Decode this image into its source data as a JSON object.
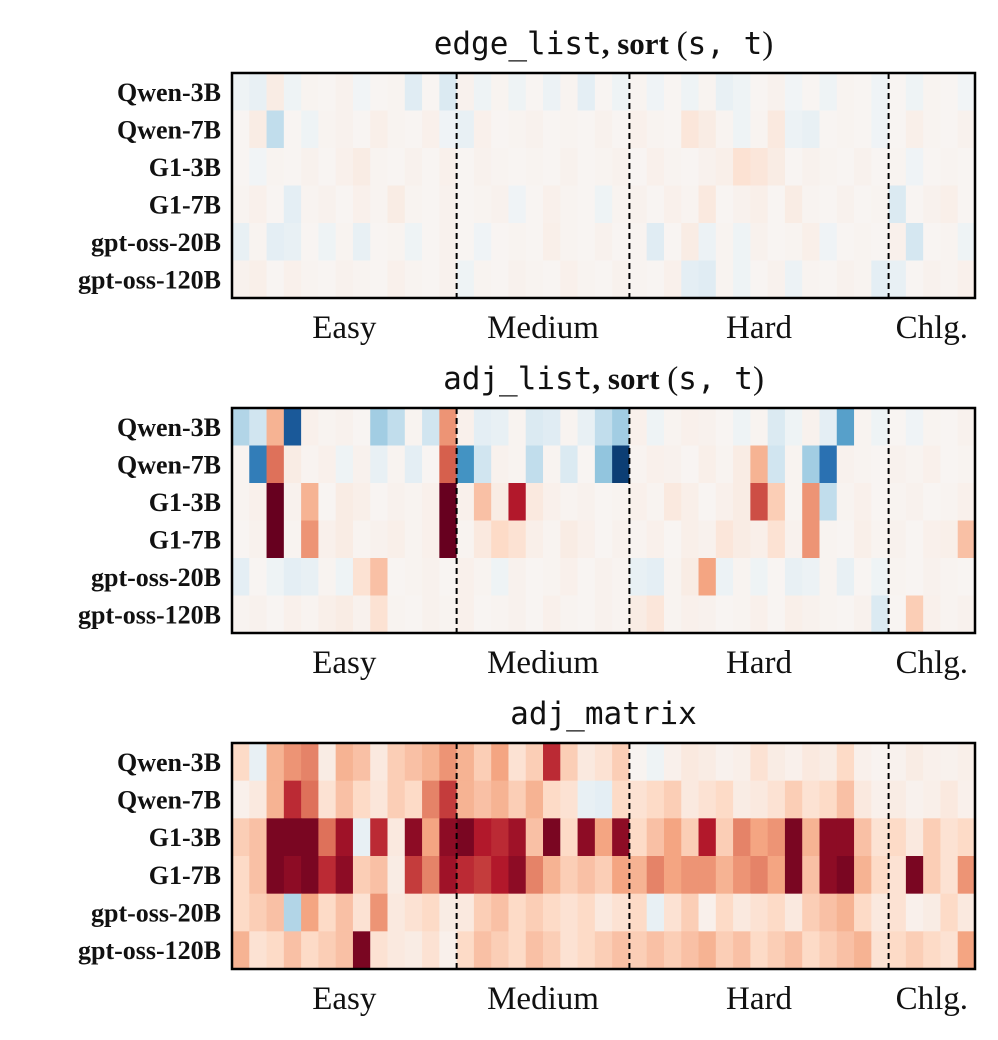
{
  "colors": {
    "negative_strong": "#053061",
    "negative": "#2166ac",
    "negative_mid": "#4393c3",
    "negative_light": "#92c5de",
    "negative_pale": "#d1e5f0",
    "neutral": "#f7f7f7",
    "positive_pale": "#fddbc7",
    "positive_light": "#f4a582",
    "positive_mid": "#d6604d",
    "positive": "#b2182b",
    "positive_strong": "#67001f"
  },
  "chart_data": [
    {
      "type": "heatmap",
      "title_code": "edge_list",
      "title_word": ", sort",
      "title_args": "(s, t)",
      "rows": [
        "Qwen-3B",
        "Qwen-7B",
        "G1-3B",
        "G1-7B",
        "gpt-oss-20B",
        "gpt-oss-120B"
      ],
      "groups": [
        {
          "label": "Easy",
          "columns": 13
        },
        {
          "label": "Medium",
          "columns": 10
        },
        {
          "label": "Hard",
          "columns": 15
        },
        {
          "label": "Chlg.",
          "columns": 5
        }
      ],
      "value_range": [
        -1,
        1
      ],
      "values": [
        [
          -0.05,
          -0.08,
          0.08,
          -0.05,
          0.03,
          0.02,
          0.04,
          -0.03,
          0.02,
          0.03,
          -0.12,
          0.02,
          -0.15,
          0.04,
          -0.05,
          0.03,
          -0.05,
          0.02,
          -0.06,
          0.03,
          -0.1,
          0.02,
          -0.05,
          0.03,
          -0.04,
          0.02,
          -0.05,
          0.03,
          -0.08,
          -0.05,
          0.02,
          0.04,
          -0.03,
          0.02,
          -0.05,
          0.03,
          0.02,
          -0.04,
          0.02,
          -0.05,
          0.03,
          0.02,
          -0.03
        ],
        [
          0.02,
          0.08,
          -0.25,
          0.02,
          -0.05,
          0.03,
          0.04,
          0.02,
          0.06,
          0.03,
          0.02,
          0.05,
          -0.04,
          -0.08,
          0.05,
          0.02,
          0.03,
          0.04,
          0.02,
          0.03,
          0.02,
          0.04,
          0.02,
          0.05,
          0.03,
          0.02,
          0.12,
          0.08,
          0.03,
          -0.05,
          0.03,
          0.1,
          -0.06,
          -0.08,
          0.02,
          0.03,
          0.02,
          -0.04,
          0.02,
          0.06,
          0.03,
          0.02,
          0.04
        ],
        [
          0.02,
          -0.03,
          0.03,
          0.02,
          0.04,
          0.02,
          0.05,
          0.08,
          0.03,
          0.02,
          0.04,
          0.02,
          0.05,
          0.02,
          0.04,
          0.03,
          0.02,
          0.03,
          0.02,
          0.04,
          0.02,
          0.03,
          0.04,
          0.02,
          0.05,
          0.03,
          0.02,
          0.04,
          0.06,
          0.15,
          0.12,
          0.08,
          0.02,
          0.04,
          0.03,
          0.02,
          0.04,
          0.02,
          0.03,
          -0.04,
          0.02,
          0.03,
          0.02
        ],
        [
          0.03,
          0.05,
          0.02,
          -0.1,
          0.03,
          0.04,
          0.02,
          0.05,
          0.03,
          0.08,
          0.03,
          0.02,
          0.04,
          0.02,
          0.03,
          0.04,
          -0.04,
          0.02,
          0.05,
          0.03,
          0.02,
          -0.05,
          0.03,
          0.04,
          0.02,
          0.05,
          0.03,
          0.1,
          0.02,
          0.04,
          0.06,
          0.02,
          0.08,
          0.03,
          0.02,
          0.04,
          0.02,
          0.03,
          -0.15,
          0.02,
          0.04,
          0.06,
          0.02
        ],
        [
          -0.08,
          0.03,
          -0.1,
          -0.08,
          0.02,
          -0.05,
          0.03,
          -0.08,
          0.02,
          0.03,
          -0.05,
          0.02,
          0.04,
          0.02,
          -0.04,
          0.02,
          0.03,
          0.02,
          0.06,
          0.03,
          0.02,
          0.04,
          0.02,
          0.03,
          -0.12,
          0.02,
          0.08,
          -0.06,
          0.03,
          -0.05,
          0.04,
          0.02,
          0.03,
          0.06,
          -0.04,
          0.02,
          0.03,
          0.02,
          0.05,
          -0.18,
          0.02,
          0.03,
          -0.05
        ],
        [
          0.04,
          0.06,
          0.02,
          0.05,
          0.03,
          0.02,
          0.04,
          0.03,
          0.02,
          0.05,
          0.03,
          0.02,
          0.04,
          -0.05,
          0.03,
          0.02,
          0.04,
          0.03,
          0.02,
          0.05,
          0.03,
          0.02,
          0.04,
          0.03,
          0.02,
          0.05,
          -0.1,
          -0.12,
          0.03,
          -0.05,
          0.02,
          0.04,
          -0.06,
          0.03,
          0.02,
          0.04,
          0.03,
          -0.1,
          -0.08,
          0.02,
          0.04,
          0.03,
          0.05
        ]
      ]
    },
    {
      "type": "heatmap",
      "title_code": "adj_list",
      "title_word": ", sort",
      "title_args": "(s, t)",
      "rows": [
        "Qwen-3B",
        "Qwen-7B",
        "G1-3B",
        "G1-7B",
        "gpt-oss-20B",
        "gpt-oss-120B"
      ],
      "groups": [
        {
          "label": "Easy",
          "columns": 13
        },
        {
          "label": "Medium",
          "columns": 10
        },
        {
          "label": "Hard",
          "columns": 15
        },
        {
          "label": "Chlg.",
          "columns": 5
        }
      ],
      "value_range": [
        -1,
        1
      ],
      "values": [
        [
          -0.3,
          -0.2,
          0.35,
          -0.85,
          0.05,
          0.03,
          0.04,
          0.02,
          -0.35,
          -0.25,
          0.03,
          -0.2,
          0.45,
          0.05,
          -0.1,
          -0.08,
          0.03,
          -0.15,
          -0.12,
          0.03,
          -0.08,
          -0.25,
          -0.35,
          0.05,
          -0.05,
          0.03,
          0.05,
          0.04,
          0.02,
          -0.05,
          0.03,
          -0.15,
          -0.05,
          0.04,
          -0.1,
          -0.55,
          0.03,
          -0.05,
          0.02,
          -0.04,
          0.03,
          0.02,
          0.04
        ],
        [
          0.03,
          -0.7,
          0.55,
          0.08,
          0.03,
          0.05,
          -0.05,
          0.04,
          -0.08,
          0.03,
          -0.1,
          0.02,
          0.6,
          -0.6,
          -0.2,
          0.04,
          0.03,
          -0.25,
          0.03,
          -0.15,
          0.02,
          -0.4,
          -0.95,
          0.03,
          0.05,
          0.04,
          0.02,
          0.06,
          0.03,
          0.08,
          0.35,
          -0.2,
          0.03,
          -0.35,
          -0.75,
          0.04,
          0.03,
          0.02,
          0.04,
          0.03,
          0.05,
          0.02,
          0.03
        ],
        [
          0.03,
          0.05,
          1.0,
          0.04,
          0.35,
          0.02,
          0.08,
          0.06,
          0.02,
          0.04,
          0.03,
          0.05,
          1.0,
          0.05,
          0.3,
          0.08,
          0.8,
          0.1,
          0.05,
          0.03,
          0.04,
          0.02,
          0.03,
          0.05,
          0.03,
          0.1,
          0.06,
          0.02,
          0.05,
          0.08,
          0.65,
          0.25,
          0.03,
          0.45,
          -0.25,
          0.03,
          0.05,
          0.02,
          0.03,
          0.04,
          0.02,
          0.03,
          0.05
        ],
        [
          0.02,
          0.04,
          1.0,
          0.03,
          0.45,
          0.05,
          0.08,
          0.03,
          0.04,
          0.06,
          0.03,
          0.05,
          1.0,
          0.03,
          0.1,
          0.2,
          0.15,
          0.06,
          0.03,
          0.08,
          0.05,
          0.02,
          0.04,
          0.03,
          0.05,
          0.02,
          0.06,
          0.04,
          0.12,
          0.08,
          0.06,
          0.15,
          0.04,
          0.45,
          0.03,
          0.02,
          0.06,
          0.03,
          0.04,
          0.02,
          0.05,
          0.06,
          0.3
        ],
        [
          -0.1,
          0.02,
          -0.05,
          -0.1,
          -0.08,
          0.03,
          -0.05,
          0.15,
          0.3,
          0.02,
          0.03,
          0.04,
          0.02,
          0.05,
          0.03,
          -0.05,
          0.04,
          0.02,
          0.03,
          0.05,
          0.02,
          0.04,
          0.03,
          -0.08,
          -0.1,
          0.03,
          0.08,
          0.4,
          -0.06,
          0.03,
          -0.05,
          0.02,
          -0.08,
          -0.06,
          0.03,
          -0.08,
          0.02,
          -0.05,
          0.03,
          0.02,
          0.04,
          0.03,
          0.02
        ],
        [
          0.03,
          0.04,
          0.02,
          0.05,
          0.03,
          0.06,
          0.08,
          0.04,
          0.15,
          0.03,
          0.02,
          0.04,
          0.03,
          0.05,
          0.02,
          0.03,
          0.04,
          0.02,
          0.05,
          0.03,
          0.02,
          0.04,
          0.03,
          0.08,
          0.12,
          0.03,
          0.05,
          0.04,
          0.02,
          0.03,
          0.05,
          0.02,
          0.06,
          0.04,
          0.03,
          0.02,
          0.04,
          -0.15,
          0.02,
          0.25,
          0.05,
          0.03,
          0.04
        ]
      ]
    },
    {
      "type": "heatmap",
      "title_code": "adj_matrix",
      "title_word": "",
      "title_args": "",
      "rows": [
        "Qwen-3B",
        "Qwen-7B",
        "G1-3B",
        "G1-7B",
        "gpt-oss-20B",
        "gpt-oss-120B"
      ],
      "groups": [
        {
          "label": "Easy",
          "columns": 13
        },
        {
          "label": "Medium",
          "columns": 10
        },
        {
          "label": "Hard",
          "columns": 15
        },
        {
          "label": "Chlg.",
          "columns": 5
        }
      ],
      "value_range": [
        -1,
        1
      ],
      "values": [
        [
          0.2,
          -0.08,
          0.35,
          0.45,
          0.5,
          0.08,
          0.35,
          0.3,
          0.1,
          0.25,
          0.3,
          0.35,
          0.45,
          0.35,
          0.25,
          0.4,
          0.15,
          0.25,
          0.75,
          0.25,
          0.1,
          0.15,
          0.25,
          0.03,
          -0.05,
          0.05,
          0.1,
          0.08,
          0.04,
          0.06,
          0.15,
          0.08,
          0.05,
          0.1,
          0.08,
          0.2,
          0.05,
          0.03,
          0.04,
          0.08,
          0.05,
          0.04,
          0.06
        ],
        [
          0.05,
          0.1,
          0.35,
          0.75,
          0.55,
          0.15,
          0.3,
          0.2,
          0.12,
          0.25,
          0.2,
          0.5,
          0.7,
          0.35,
          0.3,
          0.35,
          0.25,
          0.35,
          0.2,
          0.15,
          -0.08,
          -0.1,
          0.2,
          0.15,
          0.2,
          0.25,
          0.1,
          0.15,
          0.2,
          0.08,
          0.1,
          0.15,
          0.25,
          0.15,
          0.2,
          0.3,
          0.1,
          0.05,
          0.08,
          0.04,
          0.06,
          0.1,
          0.05
        ],
        [
          0.25,
          0.3,
          0.95,
          0.95,
          0.95,
          0.55,
          0.85,
          -0.08,
          0.75,
          0.1,
          0.9,
          0.4,
          0.9,
          0.95,
          0.8,
          0.75,
          0.85,
          0.3,
          0.95,
          0.2,
          0.9,
          0.4,
          0.9,
          0.2,
          0.3,
          0.4,
          0.25,
          0.8,
          0.25,
          0.5,
          0.4,
          0.45,
          0.95,
          0.35,
          0.9,
          0.9,
          0.3,
          0.15,
          0.2,
          0.1,
          0.25,
          0.15,
          0.2
        ],
        [
          0.2,
          0.3,
          0.95,
          0.9,
          0.95,
          0.75,
          0.9,
          0.25,
          0.3,
          0.08,
          0.7,
          0.5,
          0.85,
          0.75,
          0.7,
          0.8,
          0.9,
          0.5,
          0.35,
          0.25,
          0.3,
          0.25,
          0.4,
          0.35,
          0.5,
          0.4,
          0.45,
          0.45,
          0.35,
          0.45,
          0.5,
          0.4,
          0.95,
          0.3,
          0.9,
          0.95,
          0.35,
          0.2,
          0.15,
          0.95,
          0.25,
          0.15,
          0.45
        ],
        [
          0.2,
          0.25,
          0.3,
          -0.3,
          0.4,
          0.2,
          0.3,
          0.15,
          0.45,
          0.1,
          0.15,
          0.2,
          0.08,
          0.1,
          0.25,
          0.3,
          0.2,
          0.25,
          0.2,
          0.15,
          0.2,
          0.1,
          0.15,
          0.2,
          -0.08,
          0.15,
          0.25,
          0.05,
          0.2,
          0.1,
          0.15,
          0.2,
          0.1,
          0.25,
          0.3,
          0.35,
          0.2,
          0.1,
          0.15,
          0.05,
          0.08,
          0.2,
          0.1
        ],
        [
          0.35,
          0.15,
          0.2,
          0.3,
          0.2,
          0.25,
          0.3,
          0.95,
          0.15,
          0.1,
          0.08,
          0.15,
          0.05,
          0.2,
          0.3,
          0.25,
          0.2,
          0.3,
          0.25,
          0.15,
          0.2,
          0.25,
          0.3,
          0.25,
          0.3,
          0.25,
          0.3,
          0.35,
          0.25,
          0.3,
          0.2,
          0.25,
          0.3,
          0.2,
          0.25,
          0.3,
          0.35,
          0.15,
          0.2,
          0.25,
          0.2,
          0.15,
          0.4
        ]
      ]
    }
  ]
}
